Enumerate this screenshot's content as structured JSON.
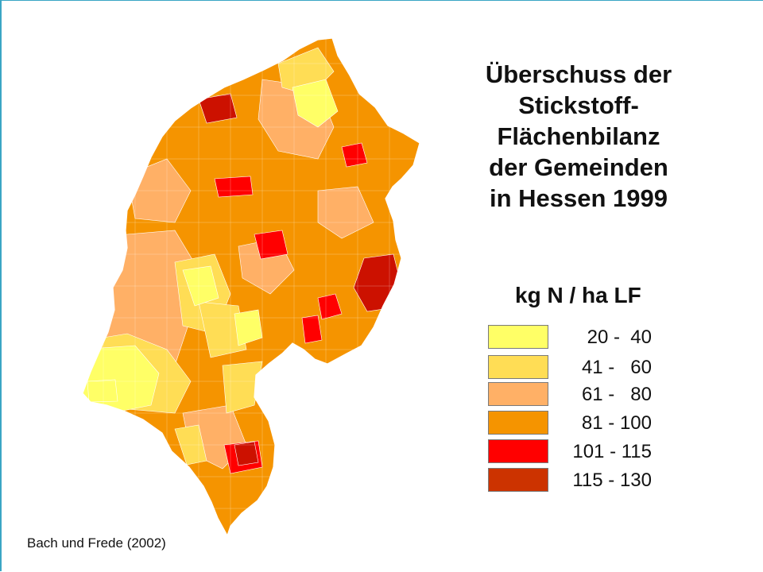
{
  "title_lines": [
    "Überschuss der",
    "Stickstoff-",
    "Flächenbilanz",
    "der Gemeinden",
    "in Hessen 1999"
  ],
  "unit": "kg N / ha LF",
  "legend": [
    {
      "label": "20 -  40",
      "color": "#ffff66"
    },
    {
      "label": "41 -   60",
      "color": "#ffdd55"
    },
    {
      "label": "61 -   80",
      "color": "#ffb066"
    },
    {
      "label": "81 - 100",
      "color": "#f59400"
    },
    {
      "label": "101 - 115",
      "color": "#ff0000"
    },
    {
      "label": "115 - 130",
      "color": "#cc3300"
    }
  ],
  "source": "Bach und Frede (2002)",
  "colors": {
    "frame": "#3aa6c4",
    "region_border": "#ffffff"
  }
}
